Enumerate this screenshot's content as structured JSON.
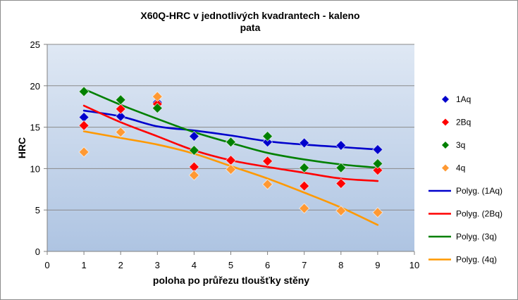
{
  "chart_data": {
    "type": "scatter",
    "title_line1": "X60Q-HRC v jednotlivých kvadrantech - kaleno",
    "title_line2": "pata",
    "xlabel": "poloha po průřezu tloušťky stěny",
    "ylabel": "HRC",
    "xlim": [
      0,
      10
    ],
    "ylim": [
      0,
      25
    ],
    "x_ticks": [
      "0",
      "1",
      "2",
      "3",
      "4",
      "5",
      "6",
      "7",
      "8",
      "9",
      "10"
    ],
    "y_ticks": [
      "0",
      "5",
      "10",
      "15",
      "20",
      "25"
    ],
    "grid": "horizontal",
    "legend_position": "right",
    "series": [
      {
        "name": "1Aq",
        "color": "#0000cc",
        "x": [
          1,
          2,
          3,
          4,
          5,
          6,
          7,
          8,
          9
        ],
        "y": [
          16.2,
          16.3,
          18.0,
          13.9,
          13.2,
          13.2,
          13.1,
          12.8,
          12.3
        ]
      },
      {
        "name": "2Bq",
        "color": "#ff0000",
        "x": [
          1,
          2,
          3,
          4,
          5,
          6,
          7,
          8,
          9
        ],
        "y": [
          15.2,
          17.2,
          17.8,
          10.2,
          11.0,
          10.9,
          7.9,
          8.2,
          9.8
        ]
      },
      {
        "name": "3q",
        "color": "#008000",
        "x": [
          1,
          2,
          3,
          4,
          5,
          6,
          7,
          8,
          9
        ],
        "y": [
          19.3,
          18.3,
          17.3,
          12.2,
          13.2,
          13.9,
          10.1,
          10.1,
          10.6
        ]
      },
      {
        "name": "4q",
        "color": "#ff9933",
        "x": [
          1,
          2,
          3,
          4,
          5,
          6,
          7,
          8,
          9
        ],
        "y": [
          12.0,
          14.4,
          18.7,
          9.2,
          9.9,
          8.1,
          5.2,
          4.9,
          4.7
        ]
      }
    ],
    "trendlines": [
      {
        "name": "Polyg. (1Aq)",
        "color": "#0000cc",
        "x": [
          1,
          2,
          3,
          4,
          5,
          6,
          7,
          8,
          9
        ],
        "y": [
          17.0,
          16.3,
          15.1,
          14.6,
          14.0,
          13.3,
          12.9,
          12.6,
          12.3
        ]
      },
      {
        "name": "Polyg. (2Bq)",
        "color": "#ff0000",
        "x": [
          1,
          2,
          3,
          4,
          5,
          6,
          7,
          8,
          9
        ],
        "y": [
          17.6,
          15.6,
          13.9,
          12.2,
          11.0,
          10.2,
          9.5,
          8.8,
          8.5
        ]
      },
      {
        "name": "Polyg. (3q)",
        "color": "#008000",
        "x": [
          1,
          2,
          3,
          4,
          5,
          6,
          7,
          8,
          9
        ],
        "y": [
          19.6,
          17.7,
          16.0,
          14.4,
          13.1,
          11.9,
          11.1,
          10.5,
          10.1
        ]
      },
      {
        "name": "Polyg. (4q)",
        "color": "#ff9900",
        "x": [
          1,
          2,
          3,
          4,
          5,
          6,
          7,
          8,
          9
        ],
        "y": [
          14.5,
          13.7,
          12.9,
          11.8,
          10.3,
          8.8,
          7.1,
          5.3,
          3.2
        ]
      }
    ]
  }
}
